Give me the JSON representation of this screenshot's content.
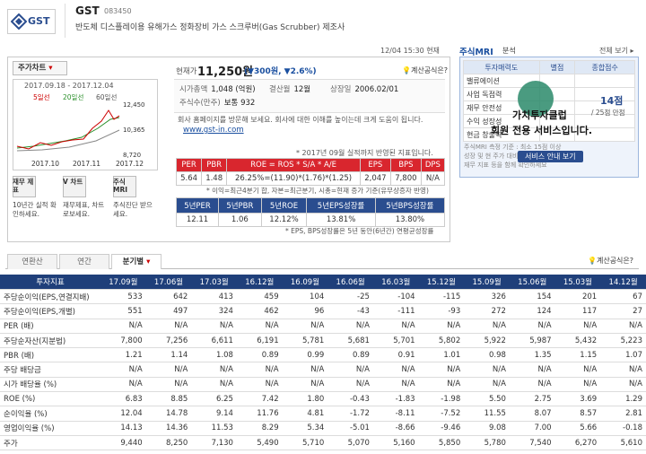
{
  "header": {
    "logo": "GST",
    "name": "GST",
    "code": "083450",
    "description": "반도체 디스플레이용 유해가스 정화장비 가스 스크루버(Gas Scrubber) 제조사",
    "timestamp": "12/04 15:30 현재"
  },
  "price_panel": {
    "tab": "주가차트",
    "chart_range": "2017.09.18 - 2017.12.04",
    "chart_legend": [
      "5일선",
      "20일선",
      "60일선"
    ],
    "chart_y_labels": [
      "12,450",
      "10,365",
      "8,720"
    ],
    "chart_x_labels": [
      "2017.10",
      "2017.11",
      "2017.12"
    ],
    "shortcuts": [
      {
        "title": "재무 제표",
        "desc": "10년간 실적 확인하세요."
      },
      {
        "title": "V 차트",
        "desc": "재무제표, 차트로보세요."
      },
      {
        "title": "주식 MRI",
        "desc": "주식진단 받으세요."
      }
    ],
    "price_label": "현재가",
    "price": "11,250원",
    "change": "(▼300원, ▼2.6%)",
    "formula_link": "계산공식은?",
    "info": [
      {
        "label": "시가총액",
        "value": "1,048 (억원)"
      },
      {
        "label": "결산월",
        "value": "12월"
      },
      {
        "label": "상장일",
        "value": "2006.02/01"
      },
      {
        "label": "주식수(만주)",
        "value": "보통 932"
      }
    ],
    "homepage_note": "회사 홈페이지를 방문해 보세요. 회사에 대한 이해를 높이는데 크게 도움이 됩니다.",
    "homepage": "www.gst-in.com",
    "indicator_note": "* 2017년 09월 실적까지 반영된 지표입니다.",
    "table1": {
      "headers": [
        "PER",
        "PBR",
        "ROE = ROS * S/A * A/E",
        "EPS",
        "BPS",
        "DPS"
      ],
      "values": [
        "5.64",
        "1.48",
        "26.25%=(11.90)*(1.76)*(1.25)",
        "2,047",
        "7,800",
        "N/A"
      ]
    },
    "table1_note": "* 이익=최근4분기 합, 자본=최근분기, 시총=현재 증가 기준(유무상증자 반영)",
    "table2": {
      "headers": [
        "5년PER",
        "5년PBR",
        "5년ROE",
        "5년EPS성장률",
        "5년BPS성장률"
      ],
      "values": [
        "12.11",
        "1.06",
        "12.12%",
        "13.81%",
        "13.80%"
      ]
    },
    "table2_note": "* EPS, BPS성장률은 5년 동안(6년간) 연평균성장률"
  },
  "mri": {
    "title": "주식MRI",
    "subtitle": "분석",
    "link": "전체 보기",
    "headers": [
      "투자매력도",
      "별점",
      "종합점수"
    ],
    "rows": [
      "밸류에이션",
      "사업 독점력",
      "재무 안전성",
      "수익 성장성",
      "현금 창출력"
    ],
    "overlay_title": "가치투자클럽",
    "overlay_text": "회원 전용 서비스입니다.",
    "score": "14점",
    "score_note": "/ 25점 만점",
    "note": [
      "주식MRI 측정 기준 : 최소 15점 이상",
      "성장 및 현 주가 대비 보유 시 기간이 짧아",
      "재무 지표 등을 함께 확인하세요"
    ],
    "button": "서비스 안내 보기"
  },
  "financials": {
    "tabs": [
      "연환산",
      "연간",
      "분기별"
    ],
    "formula_link": "계산공식은?",
    "columns": [
      "투자지표",
      "17.09월",
      "17.06월",
      "17.03월",
      "16.12월",
      "16.09월",
      "16.06월",
      "16.03월",
      "15.12월",
      "15.09월",
      "15.06월",
      "15.03월",
      "14.12월"
    ],
    "rows": [
      {
        "label": "주당순이익(EPS,연결지배)",
        "values": [
          "533",
          "642",
          "413",
          "459",
          "104",
          "-25",
          "-104",
          "-115",
          "326",
          "154",
          "201",
          "67"
        ]
      },
      {
        "label": "주당순이익(EPS,개별)",
        "values": [
          "551",
          "497",
          "324",
          "462",
          "96",
          "-43",
          "-111",
          "-93",
          "272",
          "124",
          "117",
          "27"
        ]
      },
      {
        "label": "PER (배)",
        "values": [
          "N/A",
          "N/A",
          "N/A",
          "N/A",
          "N/A",
          "N/A",
          "N/A",
          "N/A",
          "N/A",
          "N/A",
          "N/A",
          "N/A"
        ]
      },
      {
        "label": "주당순자산(지분법)",
        "values": [
          "7,800",
          "7,256",
          "6,611",
          "6,191",
          "5,781",
          "5,681",
          "5,701",
          "5,802",
          "5,922",
          "5,987",
          "5,432",
          "5,223"
        ]
      },
      {
        "label": "PBR (배)",
        "values": [
          "1.21",
          "1.14",
          "1.08",
          "0.89",
          "0.99",
          "0.89",
          "0.91",
          "1.01",
          "0.98",
          "1.35",
          "1.15",
          "1.07"
        ]
      },
      {
        "label": "주당 배당금",
        "values": [
          "N/A",
          "N/A",
          "N/A",
          "N/A",
          "N/A",
          "N/A",
          "N/A",
          "N/A",
          "N/A",
          "N/A",
          "N/A",
          "N/A"
        ]
      },
      {
        "label": "시가 배당율 (%)",
        "values": [
          "N/A",
          "N/A",
          "N/A",
          "N/A",
          "N/A",
          "N/A",
          "N/A",
          "N/A",
          "N/A",
          "N/A",
          "N/A",
          "N/A"
        ]
      },
      {
        "label": "ROE (%)",
        "values": [
          "6.83",
          "8.85",
          "6.25",
          "7.42",
          "1.80",
          "-0.43",
          "-1.83",
          "-1.98",
          "5.50",
          "2.75",
          "3.69",
          "1.29"
        ]
      },
      {
        "label": "순이익율 (%)",
        "values": [
          "12.04",
          "14.78",
          "9.14",
          "11.76",
          "4.81",
          "-1.72",
          "-8.11",
          "-7.52",
          "11.55",
          "8.07",
          "8.57",
          "2.81"
        ]
      },
      {
        "label": "영업이익율 (%)",
        "values": [
          "14.13",
          "14.36",
          "11.53",
          "8.29",
          "5.34",
          "-5.01",
          "-8.66",
          "-9.46",
          "9.08",
          "7.00",
          "5.66",
          "-0.18"
        ]
      },
      {
        "label": "주가",
        "values": [
          "9,440",
          "8,250",
          "7,130",
          "5,490",
          "5,710",
          "5,070",
          "5,160",
          "5,850",
          "5,780",
          "7,540",
          "6,270",
          "5,610"
        ]
      }
    ]
  }
}
